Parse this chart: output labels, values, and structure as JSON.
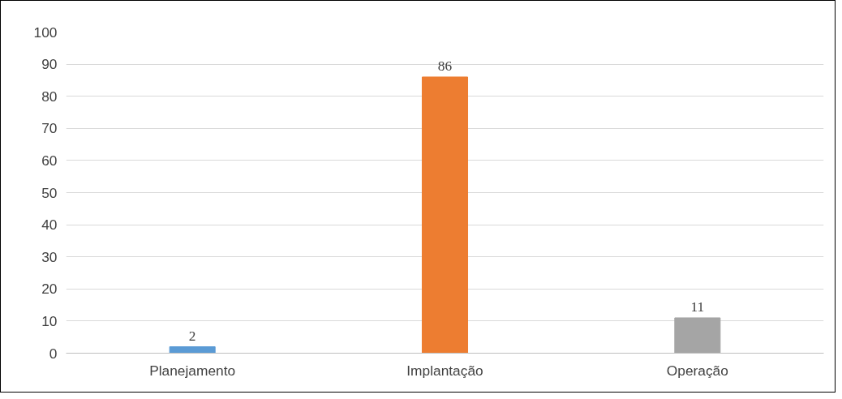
{
  "chart_data": {
    "type": "bar",
    "categories": [
      "Planejamento",
      "Implantação",
      "Operação"
    ],
    "values": [
      2,
      86,
      11
    ],
    "colors": [
      "#5b9bd5",
      "#ed7d31",
      "#a5a5a5"
    ],
    "ylim": [
      0,
      100
    ],
    "yticks": [
      0,
      10,
      20,
      30,
      40,
      50,
      60,
      70,
      80,
      90,
      100
    ],
    "grid": "y",
    "data_labels": true
  }
}
